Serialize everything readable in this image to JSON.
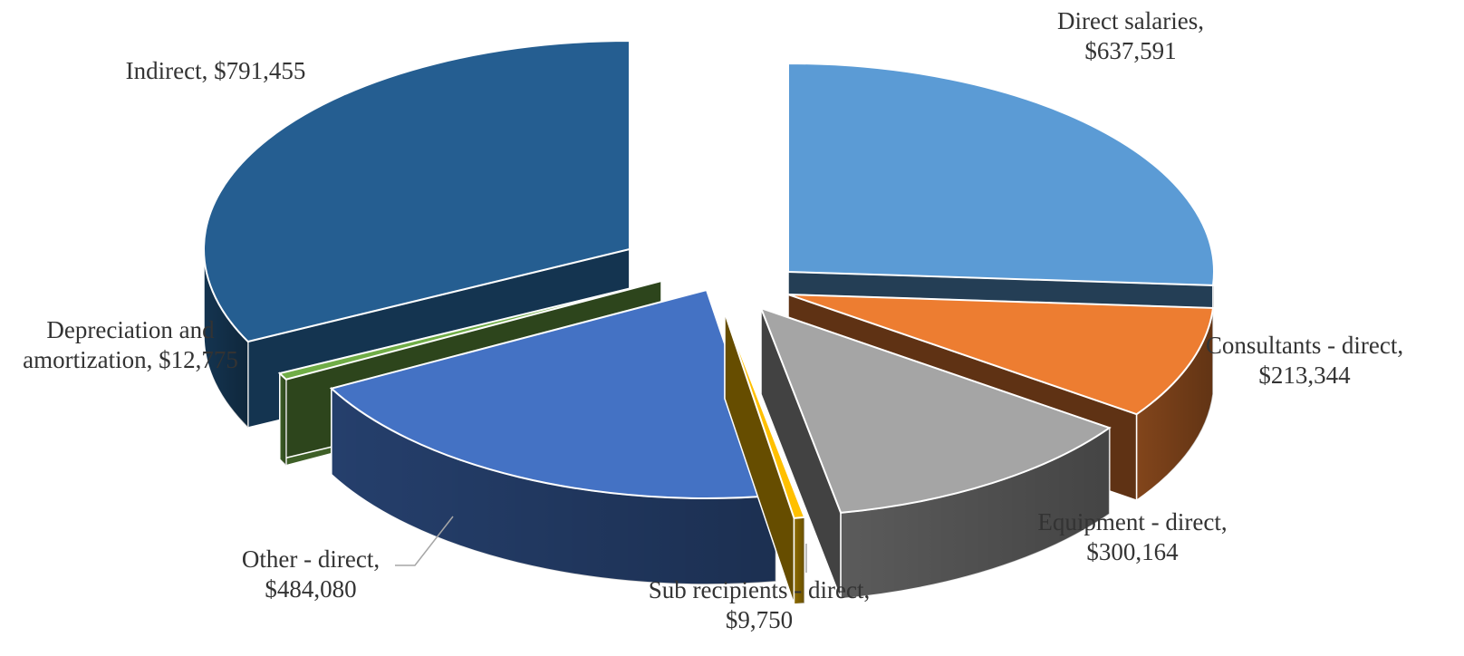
{
  "chart_data": {
    "type": "pie",
    "style": "3d-exploded",
    "slices": [
      {
        "name": "Direct salaries",
        "value": "$637,591",
        "amount": 637591,
        "color": "#5b9bd5",
        "label_lines": [
          "Direct salaries,",
          "$637,591"
        ]
      },
      {
        "name": "Consultants - direct",
        "value": "$213,344",
        "amount": 213344,
        "color": "#ed7d31",
        "label_lines": [
          "Consultants - direct,",
          "$213,344"
        ]
      },
      {
        "name": "Equipment - direct",
        "value": "$300,164",
        "amount": 300164,
        "color": "#a5a5a5",
        "label_lines": [
          "Equipment - direct,",
          "$300,164"
        ]
      },
      {
        "name": "Sub recipients - direct",
        "value": "$9,750",
        "amount": 9750,
        "color": "#ffc000",
        "label_lines": [
          "Sub recipients - direct,",
          "$9,750"
        ]
      },
      {
        "name": "Other - direct",
        "value": "$484,080",
        "amount": 484080,
        "color": "#4472c4",
        "label_lines": [
          "Other - direct,",
          "$484,080"
        ]
      },
      {
        "name": "Depreciation and amortization",
        "value": "$12,775",
        "amount": 12775,
        "color": "#70ad47",
        "label_lines": [
          "Depreciation and",
          "amortization, $12,775"
        ]
      },
      {
        "name": "Indirect",
        "value": "$791,455",
        "amount": 791455,
        "color": "#255e91",
        "label_lines": [
          "Indirect, $791,455"
        ]
      }
    ]
  }
}
